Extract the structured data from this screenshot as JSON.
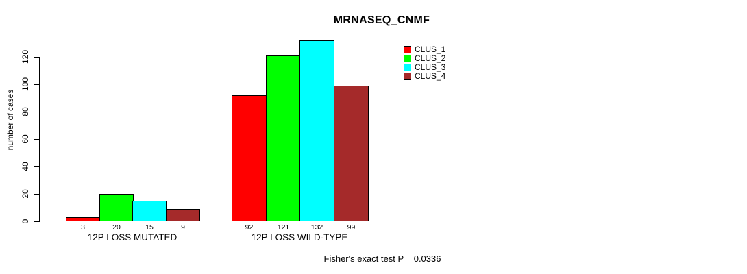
{
  "chart_data": {
    "type": "bar",
    "title": "MRNASEQ_CNMF",
    "xlabel": "",
    "ylabel": "number of cases",
    "categories": [
      "12P LOSS MUTATED",
      "12P LOSS WILD-TYPE"
    ],
    "series": [
      {
        "name": "CLUS_1",
        "color": "#ff0000",
        "values": [
          3,
          92
        ]
      },
      {
        "name": "CLUS_2",
        "color": "#00ff00",
        "values": [
          20,
          121
        ]
      },
      {
        "name": "CLUS_3",
        "color": "#00ffff",
        "values": [
          15,
          132
        ]
      },
      {
        "name": "CLUS_4",
        "color": "#a52a2a",
        "values": [
          9,
          99
        ]
      }
    ],
    "ylim": [
      0,
      132
    ],
    "yticks": [
      0,
      20,
      40,
      60,
      80,
      100,
      120
    ],
    "grid": false,
    "bar_value_labels": true,
    "legend": {
      "position": "top-right",
      "entries": [
        "CLUS_1",
        "CLUS_2",
        "CLUS_3",
        "CLUS_4"
      ]
    },
    "annotation": "Fisher's exact test P = 0.0336"
  }
}
